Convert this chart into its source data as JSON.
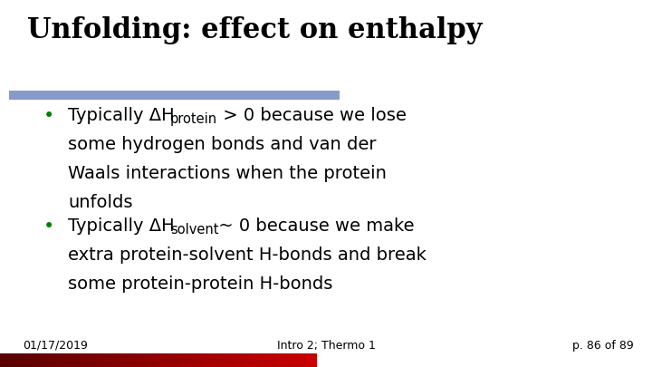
{
  "title": "Unfolding: effect on enthalpy",
  "title_color": "#000000",
  "title_fontsize": 22,
  "title_font": "DejaVu Serif",
  "bg_color": "#ffffff",
  "bar_color_blue": "#8899CC",
  "bullet_color": "#008000",
  "bullet1_line1": "Typically ΔH",
  "bullet1_sub1": "protein",
  "bullet1_line1b": " > 0 because we lose",
  "bullet1_line2": "some hydrogen bonds and van der",
  "bullet1_line3": "Waals interactions when the protein",
  "bullet1_line4": "unfolds",
  "bullet2_line1": "Typically ΔH",
  "bullet2_sub1": "solvent",
  "bullet2_line1b": " ~ 0 because we make",
  "bullet2_line2": "extra protein-solvent H-bonds and break",
  "bullet2_line3": "some protein-protein H-bonds",
  "footer_left": "01/17/2019",
  "footer_center": "Intro 2; Thermo 1",
  "footer_right": "p. 86 of 89",
  "footer_fontsize": 9,
  "body_fontsize": 14,
  "sub_fontsize": 10.5
}
